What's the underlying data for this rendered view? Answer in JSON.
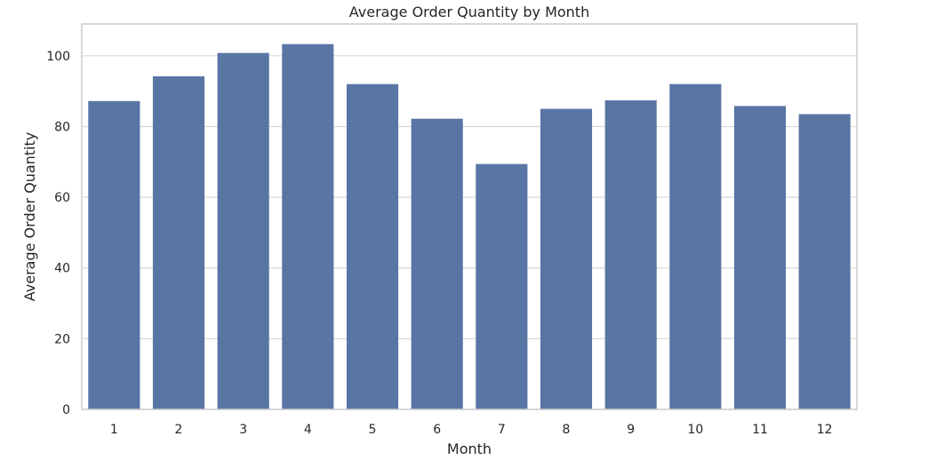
{
  "chart_data": {
    "type": "bar",
    "title": "Average Order Quantity by Month",
    "xlabel": "Month",
    "ylabel": "Average Order Quantity",
    "categories": [
      "1",
      "2",
      "3",
      "4",
      "5",
      "6",
      "7",
      "8",
      "9",
      "10",
      "11",
      "12"
    ],
    "values": [
      87.2,
      94.2,
      100.8,
      103.3,
      92.0,
      82.2,
      69.4,
      85.0,
      87.4,
      92.0,
      85.8,
      83.5
    ],
    "ylim": [
      0,
      109
    ],
    "yticks": [
      0,
      20,
      40,
      60,
      80,
      100
    ],
    "grid": true,
    "legend": "none",
    "colors": {
      "bar": "#5875a4",
      "grid": "#d9d9d9",
      "frame": "#cccccc"
    }
  }
}
